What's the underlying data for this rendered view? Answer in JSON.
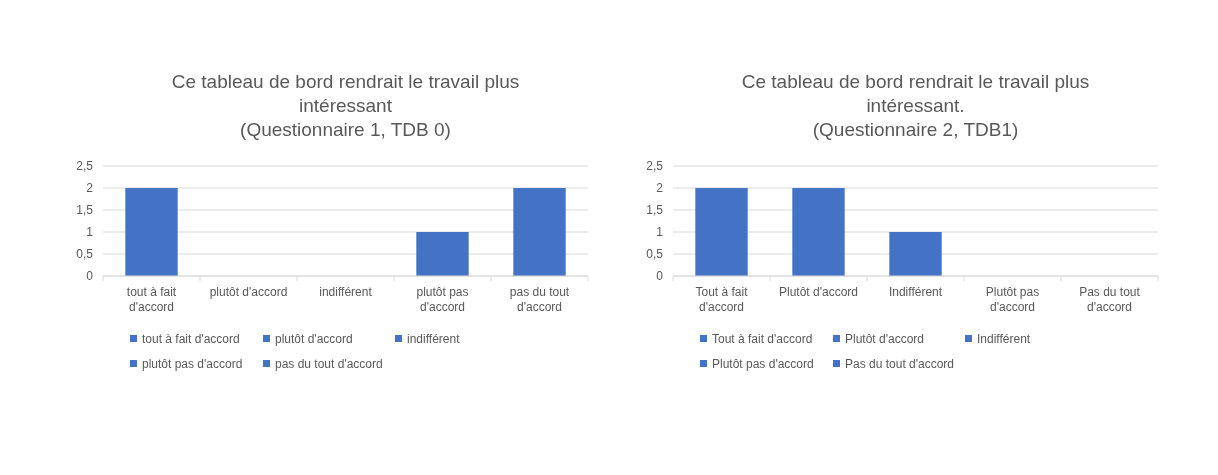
{
  "chart_data": [
    {
      "type": "bar",
      "title": "Ce tableau de bord rendrait le travail plus intéressant",
      "subtitle": "(Questionnaire 1, TDB 0)",
      "categories": [
        "tout à fait d'accord",
        "plutôt d'accord",
        "indifférent",
        "plutôt pas d'accord",
        "pas du tout d'accord"
      ],
      "series": [
        {
          "name": "tout à fait d'accord",
          "color": "#4472c4",
          "values": [
            2,
            null,
            null,
            null,
            null
          ]
        },
        {
          "name": "plutôt d'accord",
          "color": "#4472c4",
          "values": [
            null,
            0,
            null,
            null,
            null
          ]
        },
        {
          "name": "indifférent",
          "color": "#4472c4",
          "values": [
            null,
            null,
            0,
            null,
            null
          ]
        },
        {
          "name": "plutôt pas d'accord",
          "color": "#4472c4",
          "values": [
            null,
            null,
            null,
            1,
            null
          ]
        },
        {
          "name": "pas du tout d'accord",
          "color": "#4472c4",
          "values": [
            null,
            null,
            null,
            null,
            2
          ]
        }
      ],
      "ylim": [
        0,
        2.5
      ],
      "yticks": [
        0,
        {
          "value": 0.5,
          "label": "0,5"
        },
        1,
        {
          "value": 1.5,
          "label": "1,5"
        },
        2,
        {
          "value": 2.5,
          "label": "2,5"
        }
      ],
      "grid": "y",
      "legend": "bottom"
    },
    {
      "type": "bar",
      "title": "Ce tableau de bord rendrait le travail plus intéressant.",
      "subtitle": "(Questionnaire 2, TDB1)",
      "categories": [
        "Tout à fait d'accord",
        "Plutôt d'accord",
        "Indifférent",
        "Plutôt pas d'accord",
        "Pas du tout d'accord"
      ],
      "series": [
        {
          "name": "Tout à fait d'accord",
          "color": "#4472c4",
          "values": [
            2,
            null,
            null,
            null,
            null
          ]
        },
        {
          "name": "Plutôt d'accord",
          "color": "#4472c4",
          "values": [
            null,
            2,
            null,
            null,
            null
          ]
        },
        {
          "name": "Indifférent",
          "color": "#4472c4",
          "values": [
            null,
            null,
            1,
            null,
            null
          ]
        },
        {
          "name": "Plutôt pas d'accord",
          "color": "#4472c4",
          "values": [
            null,
            null,
            null,
            0,
            null
          ]
        },
        {
          "name": "Pas du tout d'accord",
          "color": "#4472c4",
          "values": [
            null,
            null,
            null,
            null,
            0
          ]
        }
      ],
      "ylim": [
        0,
        2.5
      ],
      "yticks": [
        0,
        {
          "value": 0.5,
          "label": "0,5"
        },
        1,
        {
          "value": 1.5,
          "label": "1,5"
        },
        2,
        {
          "value": 2.5,
          "label": "2,5"
        }
      ],
      "grid": "y",
      "legend": "bottom"
    }
  ]
}
